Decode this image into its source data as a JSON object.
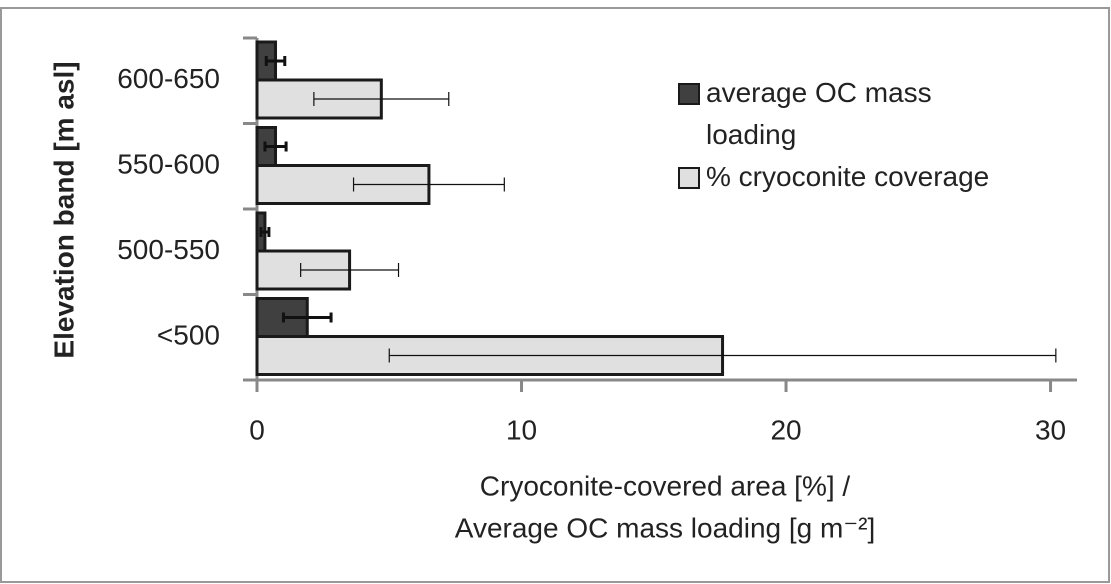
{
  "chart_data": {
    "type": "hbar",
    "y_label": "Elevation band [m asl]",
    "x_label": [
      "Cryoconite-covered area [%] /",
      "Average OC mass loading [g m⁻²]"
    ],
    "categories": [
      "<500",
      "500-550",
      "550-600",
      "600-650"
    ],
    "series": [
      {
        "name": "average OC mass loading",
        "color": "#404040",
        "values": [
          1.9,
          0.3,
          0.7,
          0.7
        ],
        "errors": [
          0.9,
          0.15,
          0.4,
          0.35
        ]
      },
      {
        "name": "% cryoconite coverage",
        "color": "#e0e0e0",
        "values": [
          17.6,
          3.5,
          6.5,
          4.7
        ],
        "errors": [
          12.6,
          1.85,
          2.85,
          2.55
        ]
      }
    ],
    "xlim": [
      0,
      31
    ],
    "xticks": [
      0,
      10,
      20,
      30
    ],
    "grid": false,
    "legend": "upper right"
  }
}
